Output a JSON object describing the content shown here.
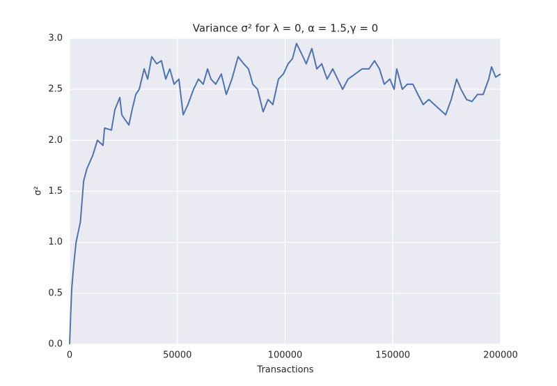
{
  "chart_data": {
    "type": "line",
    "title": "Variance σ² for λ = 0, α = 1.5,γ = 0",
    "xlabel": "Transactions",
    "ylabel": "σ²",
    "color": "#4c72b0",
    "grid": true,
    "xlim": [
      0,
      200000
    ],
    "xticks": [
      0,
      50000,
      100000,
      150000,
      200000
    ],
    "ylim": [
      0,
      3
    ],
    "yticks": [
      {
        "value": 0,
        "label": "0.0"
      },
      {
        "value": 0.5,
        "label": "0.5"
      },
      {
        "value": 1,
        "label": "1.0"
      },
      {
        "value": 1.5,
        "label": "1.5"
      },
      {
        "value": 2,
        "label": "2.0"
      },
      {
        "value": 2.5,
        "label": "2.5"
      },
      {
        "value": 3,
        "label": "3.0"
      }
    ],
    "x": [
      0,
      500,
      1000,
      2000,
      3000,
      4000,
      5000,
      6500,
      8000,
      10700,
      12900,
      15500,
      16200,
      19400,
      21000,
      23300,
      24200,
      25800,
      27500,
      29000,
      30700,
      32300,
      34600,
      36200,
      38100,
      40400,
      42600,
      44600,
      46500,
      48500,
      50700,
      52700,
      54900,
      57500,
      59800,
      62000,
      64000,
      65600,
      67800,
      70400,
      72700,
      75300,
      78200,
      80800,
      83000,
      85000,
      87200,
      89800,
      92100,
      94300,
      96900,
      99200,
      101400,
      103400,
      105300,
      107600,
      109800,
      112400,
      114700,
      117000,
      119500,
      122100,
      124400,
      126700,
      129200,
      132500,
      135700,
      138900,
      141500,
      143800,
      146000,
      148600,
      150600,
      151800,
      154400,
      156700,
      159300,
      161600,
      164100,
      166700,
      169300,
      171900,
      174500,
      177100,
      179600,
      181600,
      184200,
      186700,
      189300,
      191900,
      194500,
      195800,
      197700,
      200000
    ],
    "values": [
      0,
      0.3,
      0.55,
      0.8,
      1.0,
      1.1,
      1.2,
      1.6,
      1.72,
      1.85,
      2.0,
      1.95,
      2.12,
      2.1,
      2.3,
      2.42,
      2.25,
      2.2,
      2.15,
      2.3,
      2.45,
      2.5,
      2.7,
      2.6,
      2.82,
      2.75,
      2.78,
      2.6,
      2.7,
      2.55,
      2.6,
      2.25,
      2.35,
      2.5,
      2.6,
      2.55,
      2.7,
      2.6,
      2.55,
      2.65,
      2.45,
      2.6,
      2.82,
      2.75,
      2.7,
      2.55,
      2.5,
      2.28,
      2.4,
      2.35,
      2.6,
      2.65,
      2.75,
      2.8,
      2.95,
      2.85,
      2.75,
      2.9,
      2.7,
      2.75,
      2.6,
      2.7,
      2.6,
      2.5,
      2.6,
      2.65,
      2.7,
      2.7,
      2.78,
      2.7,
      2.55,
      2.6,
      2.5,
      2.7,
      2.5,
      2.55,
      2.55,
      2.45,
      2.35,
      2.4,
      2.35,
      2.3,
      2.25,
      2.4,
      2.6,
      2.5,
      2.4,
      2.38,
      2.45,
      2.45,
      2.6,
      2.72,
      2.62,
      2.65
    ]
  }
}
